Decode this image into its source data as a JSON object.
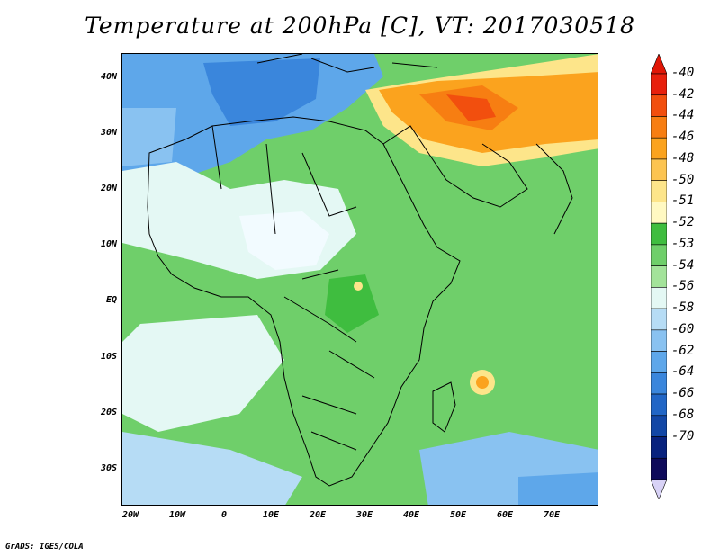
{
  "title": "Temperature at 200hPa [C], VT: 2017030518",
  "credit": "GrADS: IGES/COLA",
  "lat_labels": [
    "40N",
    "30N",
    "20N",
    "10N",
    "EQ",
    "10S",
    "20S",
    "30S"
  ],
  "lon_labels": [
    "20W",
    "10W",
    "0",
    "10E",
    "20E",
    "30E",
    "40E",
    "50E",
    "60E",
    "70E"
  ],
  "colorbar": {
    "levels": [
      "-40",
      "-42",
      "-44",
      "-46",
      "-48",
      "-50",
      "-51",
      "-52",
      "-53",
      "-54",
      "-56",
      "-58",
      "-60",
      "-62",
      "-64",
      "-66",
      "-68",
      "-70"
    ],
    "colors": [
      "#e8200c",
      "#f24f0e",
      "#f77e12",
      "#fba31e",
      "#fcc451",
      "#fde58a",
      "#fff9c2",
      "#3fbd3f",
      "#6fcf6a",
      "#a3e39a",
      "#e4f8f4",
      "#b6dcf5",
      "#89c2f1",
      "#5ea7ea",
      "#3a86dc",
      "#2166c6",
      "#1247a6",
      "#08227e",
      "#0e0a5a"
    ],
    "end_colors": [
      "#e01606",
      "#d8d2f6"
    ]
  },
  "legend_color_min": "#0e0a5a",
  "legend_color_max": "#e01606"
}
